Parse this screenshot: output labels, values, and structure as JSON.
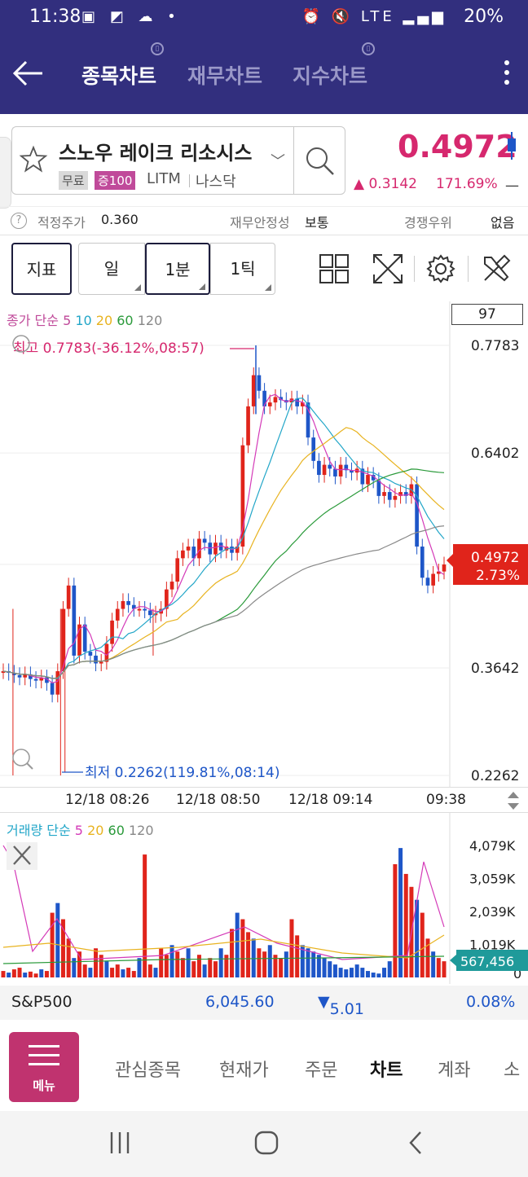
{
  "status_bar": {
    "time": "11:38",
    "battery": "20%",
    "network": "LTE"
  },
  "header": {
    "tabs": [
      {
        "label": "종목차트",
        "active": true
      },
      {
        "label": "재무차트",
        "active": false
      },
      {
        "label": "지수차트",
        "active": false
      }
    ]
  },
  "stock": {
    "name": "스노우 레이크 리소시스",
    "tag_free": "무료",
    "tag_margin": "증100",
    "ticker": "LITM",
    "exchange": "나스닥",
    "price": "0.4972",
    "change": "0.3142",
    "change_pct": "171.69%",
    "dash": "—"
  },
  "meta": {
    "fair_price_label": "적정주가",
    "fair_price_value": "0.360",
    "financial_label": "재무안정성",
    "financial_value": "보통",
    "competition_label": "경쟁우위",
    "competition_value": "없음"
  },
  "toolbar": {
    "indicator": "지표",
    "period_day": "일",
    "period_1min": "1분",
    "period_1tick": "1틱"
  },
  "chart": {
    "indicator_legend": {
      "title": "종가 단순",
      "p5": "5",
      "p10": "10",
      "p20": "20",
      "p60": "60",
      "p120": "120"
    },
    "count_box": "97",
    "high_label": "최고 0.7783(-36.12%,08:57)",
    "low_label": "최저 0.2262(119.81%,08:14)",
    "price_ticks": [
      "0.7783",
      "0.6402",
      "0.3642",
      "0.2262"
    ],
    "current_price_tag": "0.4972",
    "current_pct_tag": "2.73%",
    "x_labels": [
      "12/18 08:26",
      "12/18 08:50",
      "12/18 09:14",
      "09:38"
    ],
    "colors": {
      "up": "#e0241b",
      "down": "#1e56c8",
      "ma5": "#d43ab8",
      "ma10": "#22a6c8",
      "ma20": "#e8b320",
      "ma60": "#2a9a3a",
      "ma120": "#888888"
    }
  },
  "volume": {
    "legend": {
      "title": "거래량 단순",
      "p5": "5",
      "p20": "20",
      "p60": "60",
      "p120": "120"
    },
    "ticks": [
      "4,079K",
      "3,059K",
      "2,039K",
      "1,019K",
      "0"
    ],
    "current_tag": "567,456"
  },
  "index_bar": {
    "name": "S&P500",
    "value": "6,045.60",
    "change": "5.01",
    "pct": "0.08%"
  },
  "bottom_nav": {
    "menu": "메뉴",
    "items": [
      {
        "label": "관심종목",
        "active": false
      },
      {
        "label": "현재가",
        "active": false
      },
      {
        "label": "주문",
        "active": false
      },
      {
        "label": "차트",
        "active": true
      },
      {
        "label": "계좌",
        "active": false
      },
      {
        "label": "소",
        "active": false
      }
    ]
  }
}
